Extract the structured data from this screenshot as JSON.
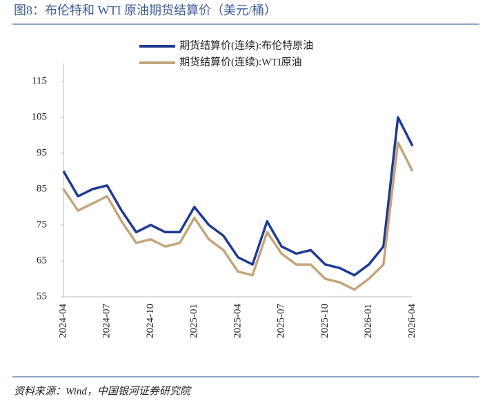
{
  "chart_data": {
    "type": "line",
    "title": "图8：布伦特和 WTI 原油期货结算价（美元/桶）",
    "source": "资料来源：Wind，中国银河证券研究院",
    "x": [
      "2024-04",
      "2024-05",
      "2024-06",
      "2024-07",
      "2024-08",
      "2024-09",
      "2024-10",
      "2024-11",
      "2024-12",
      "2025-01",
      "2025-02",
      "2025-03",
      "2025-04",
      "2025-05",
      "2025-06",
      "2025-07",
      "2025-08",
      "2025-09",
      "2025-10",
      "2025-11",
      "2025-12",
      "2026-01",
      "2026-02",
      "2026-03",
      "2026-04"
    ],
    "xticks": [
      "2024-04",
      "2024-07",
      "2024-10",
      "2025-01",
      "2025-04",
      "2025-07",
      "2025-10",
      "2026-01",
      "2026-04"
    ],
    "series": [
      {
        "name": "期货结算价(连续):布伦特原油",
        "color": "#1f3a93",
        "values": [
          90,
          83,
          85,
          86,
          79,
          73,
          75,
          73,
          73,
          80,
          75,
          72,
          66,
          64,
          76,
          69,
          67,
          68,
          64,
          63,
          61,
          64,
          69,
          105,
          97
        ]
      },
      {
        "name": "期货结算价(连续):WTI原油",
        "color": "#c4a57a",
        "values": [
          85,
          79,
          81,
          83,
          76,
          70,
          71,
          69,
          70,
          77,
          71,
          68,
          62,
          61,
          73,
          67,
          64,
          64,
          60,
          59,
          57,
          60,
          64,
          98,
          90
        ]
      }
    ],
    "ylim": [
      55,
      120
    ],
    "yticks": [
      55,
      65,
      75,
      85,
      95,
      105,
      115
    ],
    "legend": "top"
  }
}
